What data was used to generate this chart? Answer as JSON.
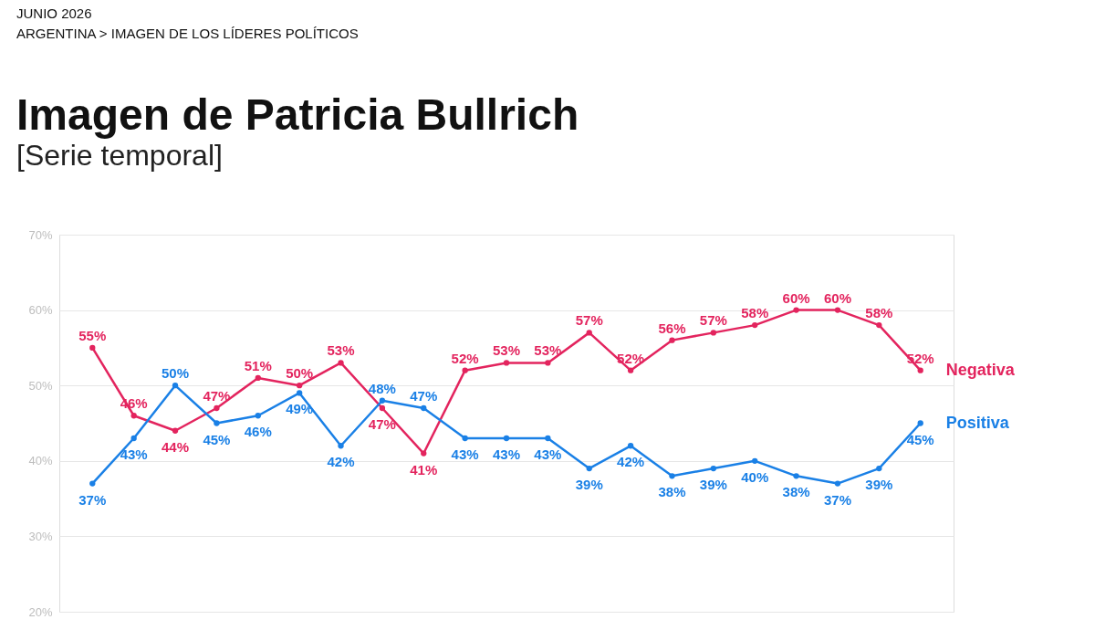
{
  "chart_data": {
    "type": "line",
    "title": "Imagen de Patricia Bullrich",
    "subtitle": "[Serie temporal]",
    "annotations": [
      "JUNIO 2026",
      "ARGENTINA > IMAGEN DE LOS LÍDERES POLÍTICOS"
    ],
    "categories": [
      null,
      null,
      null,
      null,
      null,
      null,
      null,
      null,
      null,
      null,
      null,
      null,
      null,
      null,
      null,
      null,
      null,
      null,
      null,
      null,
      null
    ],
    "series": [
      {
        "name": "Negativa",
        "color": "#e3245e",
        "values": [
          55,
          46,
          44,
          47,
          51,
          50,
          53,
          47,
          41,
          52,
          53,
          53,
          57,
          52,
          56,
          57,
          58,
          60,
          60,
          58,
          52
        ],
        "value_labels": [
          "55%",
          "46%",
          "44%",
          "47%",
          "51%",
          "50%",
          "53%",
          "47%",
          "41%",
          "52%",
          "53%",
          "53%",
          "57%",
          "52%",
          "56%",
          "57%",
          "58%",
          "60%",
          "60%",
          "58%",
          "52%"
        ]
      },
      {
        "name": "Positiva",
        "color": "#1a80e6",
        "values": [
          37,
          43,
          50,
          45,
          46,
          49,
          42,
          48,
          47,
          43,
          43,
          43,
          39,
          42,
          38,
          39,
          40,
          38,
          37,
          39,
          45
        ],
        "value_labels": [
          "37%",
          "43%",
          "50%",
          "45%",
          "46%",
          "49%",
          "42%",
          "48%",
          "47%",
          "43%",
          "43%",
          "43%",
          "39%",
          "42%",
          "38%",
          "39%",
          "40%",
          "38%",
          "37%",
          "39%",
          "45%"
        ]
      }
    ],
    "ylim": [
      20,
      70
    ],
    "yticks": [
      {
        "value": 20,
        "label": "20%"
      },
      {
        "value": 30,
        "label": "30%"
      },
      {
        "value": 40,
        "label": "40%"
      },
      {
        "value": 50,
        "label": "50%"
      },
      {
        "value": 60,
        "label": "60%"
      },
      {
        "value": 70,
        "label": "70%"
      }
    ],
    "grid": "y",
    "legend": false,
    "marker": "circle",
    "tick_labels": "y"
  }
}
